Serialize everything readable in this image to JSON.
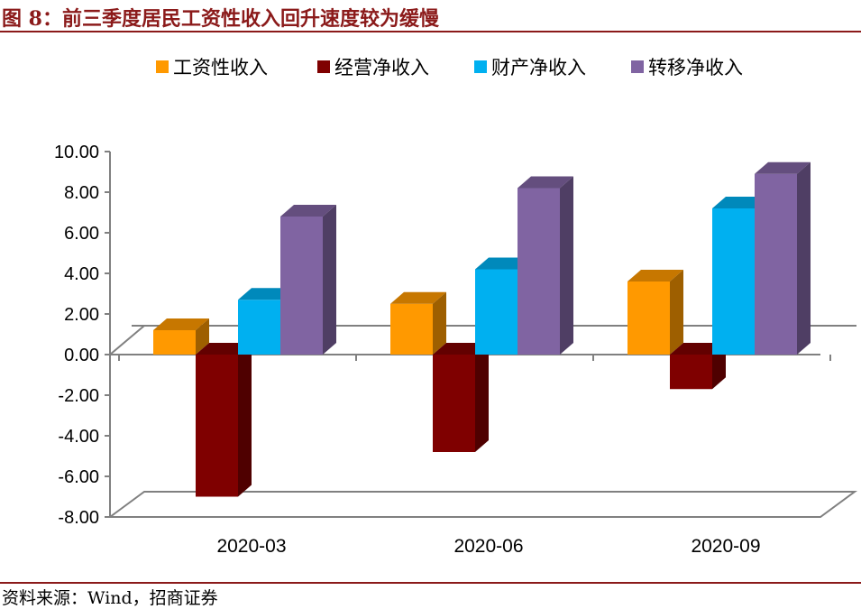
{
  "figure": {
    "title": "图 8：前三季度居民工资性收入回升速度较为缓慢",
    "source": "资料来源：Wind，招商证券"
  },
  "chart_data": {
    "type": "bar",
    "style": "3d-clustered-column",
    "categories": [
      "2020-03",
      "2020-06",
      "2020-09"
    ],
    "series": [
      {
        "name": "工资性收入",
        "values": [
          1.2,
          2.5,
          3.6
        ],
        "color": "#FF9900"
      },
      {
        "name": "经营净收入",
        "values": [
          -7.0,
          -4.8,
          -1.7
        ],
        "color": "#7F0000"
      },
      {
        "name": "财产净收入",
        "values": [
          2.7,
          4.2,
          7.2
        ],
        "color": "#00B0F0"
      },
      {
        "name": "转移净收入",
        "values": [
          6.8,
          8.2,
          8.9
        ],
        "color": "#8064A2"
      }
    ],
    "y_ticks": [
      "10.00",
      "8.00",
      "6.00",
      "4.00",
      "2.00",
      "0.00",
      "-2.00",
      "-4.00",
      "-6.00",
      "-8.00"
    ],
    "ylim": [
      -8,
      10
    ],
    "legend_position": "top",
    "grid": false
  }
}
